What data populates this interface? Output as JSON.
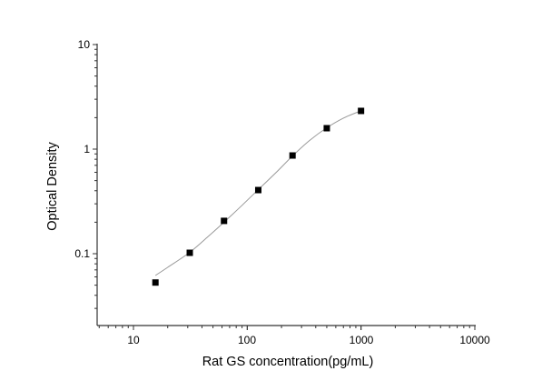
{
  "chart_data": {
    "type": "scatter",
    "title": "",
    "xlabel": "Rat GS concentration(pg/mL)",
    "ylabel": "Optical Density",
    "xscale": "log",
    "yscale": "log",
    "xlim": [
      5,
      10000
    ],
    "ylim": [
      0.02,
      10
    ],
    "x_ticks": [
      10,
      100,
      1000,
      10000
    ],
    "x_tick_labels": [
      "10",
      "100",
      "1000",
      "10000"
    ],
    "y_ticks": [
      0.1,
      1,
      10
    ],
    "y_tick_labels": [
      "0.1",
      "1",
      "10"
    ],
    "grid": false,
    "legend": null,
    "series": [
      {
        "name": "Standard points",
        "marker": "square",
        "color": "#000000",
        "x": [
          15.6,
          31.25,
          62.5,
          125,
          250,
          500,
          1000
        ],
        "y": [
          0.053,
          0.102,
          0.206,
          0.406,
          0.869,
          1.585,
          2.32
        ]
      },
      {
        "name": "Fitted curve",
        "marker": "line",
        "color": "#999999",
        "x": [
          15.6,
          20,
          31.25,
          45,
          62.5,
          90,
          125,
          180,
          250,
          350,
          500,
          700,
          1000
        ],
        "y": [
          0.062,
          0.074,
          0.103,
          0.145,
          0.2,
          0.29,
          0.41,
          0.6,
          0.86,
          1.2,
          1.6,
          1.98,
          2.33
        ]
      }
    ]
  },
  "axes": {
    "x_title": "Rat GS concentration(pg/mL)",
    "y_title": "Optical Density",
    "x_tick_labels": [
      "10",
      "100",
      "1000",
      "10000"
    ],
    "y_tick_labels": [
      "0.1",
      "1",
      "10"
    ]
  }
}
